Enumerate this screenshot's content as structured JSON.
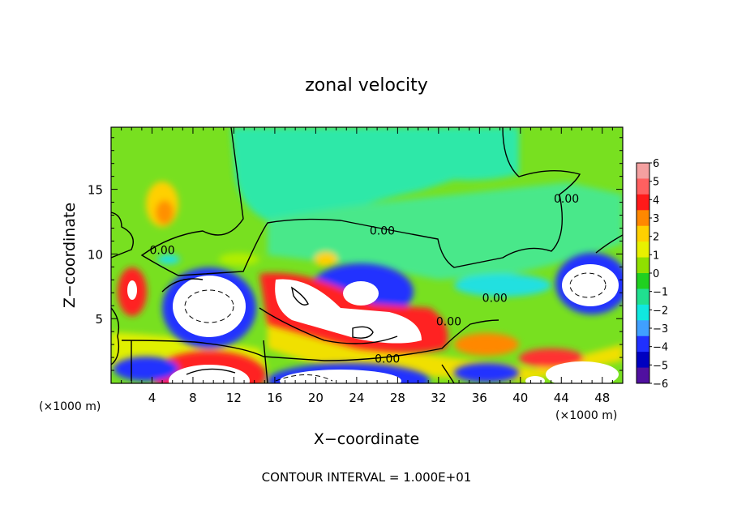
{
  "chart_data": {
    "type": "heatmap",
    "title": "zonal velocity",
    "xlabel": "X−coordinate",
    "ylabel": "Z−coordinate",
    "x_unit_label": "(×1000 m)",
    "x_unit_label_right": "(×1000 m)",
    "footer": "CONTOUR INTERVAL = 1.000E+01",
    "xlim": [
      0,
      50
    ],
    "ylim": [
      0,
      19.8
    ],
    "x_ticks": [
      4,
      8,
      12,
      16,
      20,
      24,
      28,
      32,
      36,
      40,
      44,
      48
    ],
    "y_ticks": [
      5,
      10,
      15
    ],
    "colorbar": {
      "range": [
        -6,
        6
      ],
      "ticks": [
        "6",
        "5",
        "4",
        "3",
        "2",
        "1",
        "0",
        "−1",
        "−2",
        "−3",
        "−4",
        "−5",
        "−6"
      ],
      "colors": [
        "#f4a0a0",
        "#ff6060",
        "#ff1a1a",
        "#ff8800",
        "#ffd000",
        "#e8f000",
        "#90e000",
        "#20d020",
        "#20e090",
        "#10e8e0",
        "#40a0ff",
        "#2030ff",
        "#0000c0",
        "#5010a0"
      ]
    },
    "contour_labels": [
      "0.00",
      "0.00",
      "0.00",
      "0.00",
      "0.00",
      "0.00"
    ]
  }
}
